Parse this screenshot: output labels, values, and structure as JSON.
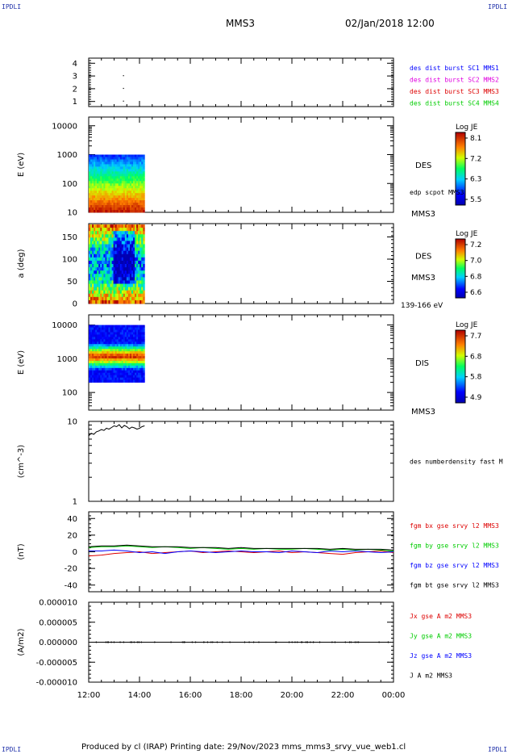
{
  "corner_label": "IPDLI",
  "header": {
    "spacecraft": "MMS3",
    "datetime": "02/Jan/2018 12:00"
  },
  "footer": {
    "text": "Produced by cl (IRAP)   Printing date: 29/Nov/2023   mms_mms3_srvy_vue_web1.cl"
  },
  "colors": {
    "blue": "#0000ff",
    "magenta": "#e000e0",
    "red": "#dd0000",
    "green": "#00cc00",
    "black": "#000000"
  },
  "chart_data": [
    {
      "type": "scatter",
      "id": "burst",
      "yticks": [
        "1",
        "2",
        "3",
        "4"
      ],
      "ylim": [
        0.6,
        4.4
      ],
      "legend": [
        {
          "text": "des dist burst SC1 MMS1",
          "color": "#0000ff"
        },
        {
          "text": "des dist burst SC2 MMS2",
          "color": "#e000e0"
        },
        {
          "text": "des dist burst SC3 MMS3",
          "color": "#dd0000"
        },
        {
          "text": "des dist burst SC4 MMS4",
          "color": "#00cc00"
        }
      ],
      "points": [
        {
          "x": 13.35,
          "y": 3.0
        },
        {
          "x": 13.35,
          "y": 2.0
        },
        {
          "x": 13.35,
          "y": 1.0
        }
      ]
    },
    {
      "type": "heatmap",
      "id": "des_energy",
      "ylabel": "E (eV)",
      "yscale": "log",
      "ylim": [
        10,
        20000
      ],
      "yticks": [
        "10",
        "100",
        "1000",
        "10000"
      ],
      "label": "DES",
      "note": "edp scpot MMS3",
      "sc_label": "MMS3",
      "colorbar": {
        "title": "Log JE",
        "ticks": [
          "8.1",
          "7.2",
          "6.3",
          "5.5"
        ]
      },
      "xrange": [
        12.0,
        14.2
      ],
      "energy_range": [
        10,
        1000
      ]
    },
    {
      "type": "heatmap",
      "id": "des_pitch",
      "ylabel": "a (deg)",
      "ylim": [
        0,
        180
      ],
      "yticks": [
        "0",
        "50",
        "100",
        "150"
      ],
      "label": "DES",
      "sc_label": "MMS3",
      "range_label": "139-166 eV",
      "colorbar": {
        "title": "Log JE",
        "ticks": [
          "7.2",
          "7.0",
          "6.8",
          "6.6"
        ]
      },
      "xrange": [
        12.0,
        14.2
      ]
    },
    {
      "type": "heatmap",
      "id": "dis_energy",
      "ylabel": "E (eV)",
      "yscale": "log",
      "ylim": [
        30,
        20000
      ],
      "yticks": [
        "100",
        "1000",
        "10000"
      ],
      "label": "DIS",
      "sc_label": "MMS3",
      "colorbar": {
        "title": "Log JE",
        "ticks": [
          "7.7",
          "6.8",
          "5.8",
          "4.9"
        ]
      },
      "xrange": [
        12.0,
        14.2
      ],
      "energy_range": [
        200,
        10000
      ]
    },
    {
      "type": "line",
      "id": "density",
      "ylabel": "(cm^-3)",
      "yscale": "log",
      "ylim": [
        1,
        10
      ],
      "yticks": [
        "1",
        "10"
      ],
      "legend": [
        {
          "text": "des numberdensity fast M",
          "color": "#000000"
        }
      ],
      "series": [
        {
          "x": [
            12.0,
            12.1,
            12.2,
            12.3,
            12.4,
            12.5,
            12.6,
            12.7,
            12.8,
            12.9,
            13.0,
            13.1,
            13.2,
            13.3,
            13.4,
            13.5,
            13.6,
            13.7,
            13.8,
            13.9,
            14.0,
            14.1,
            14.2
          ],
          "y": [
            6.6,
            7.1,
            6.9,
            7.4,
            7.6,
            7.9,
            7.7,
            8.2,
            8.0,
            8.4,
            8.8,
            8.6,
            9.1,
            8.3,
            8.9,
            8.6,
            8.1,
            8.5,
            8.3,
            8.0,
            8.2,
            8.6,
            8.8
          ]
        }
      ]
    },
    {
      "type": "line",
      "id": "fgm",
      "ylabel": "(nT)",
      "ylim": [
        -48,
        48
      ],
      "yticks": [
        "-40",
        "-20",
        "0",
        "20",
        "40"
      ],
      "legend": [
        {
          "text": "fgm bx gse srvy l2 MMS3",
          "color": "#dd0000"
        },
        {
          "text": "fgm by gse srvy l2 MMS3",
          "color": "#00cc00"
        },
        {
          "text": "fgm bz gse srvy l2 MMS3",
          "color": "#0000ff"
        },
        {
          "text": "fgm bt gse srvy l2 MMS3",
          "color": "#000000"
        }
      ],
      "series": [
        {
          "color": "#dd0000",
          "x": [
            12,
            12.5,
            13,
            13.5,
            14,
            14.5,
            15,
            15.5,
            16,
            16.5,
            17,
            17.5,
            18,
            18.5,
            19,
            19.5,
            20,
            20.5,
            21,
            21.5,
            22,
            22.5,
            23,
            23.5,
            24
          ],
          "y": [
            -5,
            -4,
            -2,
            -1,
            0,
            -2,
            -1,
            0,
            1,
            -1,
            0,
            1,
            0,
            -1,
            0,
            1,
            -1,
            0,
            -1,
            -2,
            -3,
            -1,
            0,
            1,
            -1
          ]
        },
        {
          "color": "#00cc00",
          "x": [
            12,
            12.5,
            13,
            13.5,
            14,
            14.5,
            15,
            15.5,
            16,
            16.5,
            17,
            17.5,
            18,
            18.5,
            19,
            19.5,
            20,
            20.5,
            21,
            21.5,
            22,
            22.5,
            23,
            23.5,
            24
          ],
          "y": [
            5,
            6,
            6,
            7,
            6,
            5,
            6,
            5,
            4,
            5,
            4,
            3,
            4,
            3,
            4,
            3,
            3,
            4,
            3,
            2,
            3,
            2,
            3,
            2,
            1
          ]
        },
        {
          "color": "#0000ff",
          "x": [
            12,
            12.5,
            13,
            13.5,
            14,
            14.5,
            15,
            15.5,
            16,
            16.5,
            17,
            17.5,
            18,
            18.5,
            19,
            19.5,
            20,
            20.5,
            21,
            21.5,
            22,
            22.5,
            23,
            23.5,
            24
          ],
          "y": [
            1,
            1,
            2,
            1,
            -1,
            0,
            -2,
            0,
            1,
            0,
            -1,
            0,
            1,
            0,
            0,
            -1,
            1,
            0,
            -1,
            1,
            0,
            1,
            0,
            -1,
            0
          ]
        },
        {
          "color": "#000000",
          "x": [
            12,
            12.5,
            13,
            13.5,
            14,
            14.5,
            15,
            15.5,
            16,
            16.5,
            17,
            17.5,
            18,
            18.5,
            19,
            19.5,
            20,
            20.5,
            21,
            21.5,
            22,
            22.5,
            23,
            23.5,
            24
          ],
          "y": [
            6,
            7,
            7,
            8,
            7,
            6,
            6,
            6,
            5,
            5,
            5,
            4,
            5,
            4,
            4,
            4,
            4,
            4,
            4,
            3,
            4,
            3,
            3,
            3,
            2
          ]
        }
      ]
    },
    {
      "type": "line",
      "id": "current",
      "ylabel": "(A/m2)",
      "ylim": [
        -1e-05,
        1e-05
      ],
      "yticks": [
        "-0.000010",
        "-0.000005",
        "0.000000",
        "0.000005",
        "0.000010"
      ],
      "legend": [
        {
          "text": "Jx gse A m2 MMS3",
          "color": "#dd0000"
        },
        {
          "text": "Jy gse A m2 MMS3",
          "color": "#00cc00"
        },
        {
          "text": "Jz gse A m2 MMS3",
          "color": "#0000ff"
        },
        {
          "text": "J A m2 MMS3",
          "color": "#000000"
        }
      ],
      "series": [
        {
          "color": "#000000",
          "x": [
            12,
            24
          ],
          "y": [
            0,
            0
          ]
        }
      ]
    }
  ],
  "xaxis": {
    "range": [
      12,
      24
    ],
    "ticks": [
      "12:00",
      "14:00",
      "16:00",
      "18:00",
      "20:00",
      "22:00",
      "00:00"
    ]
  }
}
